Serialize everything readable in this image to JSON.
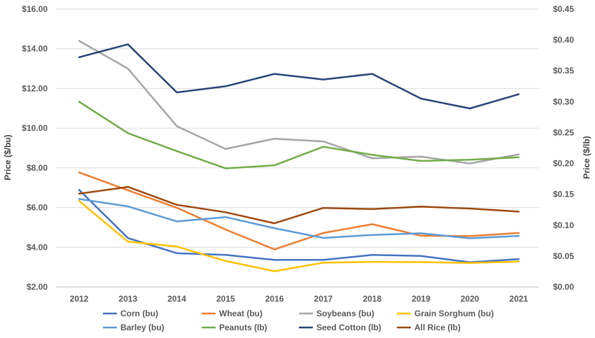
{
  "chart_data": {
    "type": "line",
    "x": [
      2012,
      2013,
      2014,
      2015,
      2016,
      2017,
      2018,
      2019,
      2020,
      2021
    ],
    "categories": [
      "2012",
      "2013",
      "2014",
      "2015",
      "2016",
      "2017",
      "2018",
      "2019",
      "2020",
      "2021"
    ],
    "y_left": {
      "label": "Price ($/bu)",
      "lim": [
        2,
        16
      ],
      "ticks": [
        "$2.00",
        "$4.00",
        "$6.00",
        "$8.00",
        "$10.00",
        "$12.00",
        "$14.00",
        "$16.00"
      ],
      "tick_values": [
        2,
        4,
        6,
        8,
        10,
        12,
        14,
        16
      ]
    },
    "y_right": {
      "label": "Price ($/lb)",
      "lim": [
        0,
        0.45
      ],
      "ticks": [
        "$0.00",
        "$0.05",
        "$0.10",
        "$0.15",
        "$0.20",
        "$0.25",
        "$0.30",
        "$0.35",
        "$0.40",
        "$0.45"
      ],
      "tick_values": [
        0,
        0.05,
        0.1,
        0.15,
        0.2,
        0.25,
        0.3,
        0.35,
        0.4,
        0.45
      ]
    },
    "grid": true,
    "legend_position": "bottom",
    "series": [
      {
        "name": "Corn (bu)",
        "axis": "left",
        "color": "#4472C4",
        "values": [
          6.89,
          4.46,
          3.7,
          3.61,
          3.36,
          3.36,
          3.61,
          3.56,
          3.24,
          3.4
        ]
      },
      {
        "name": "Wheat (bu)",
        "axis": "left",
        "color": "#ED7D31",
        "values": [
          7.77,
          6.87,
          5.99,
          4.89,
          3.89,
          4.72,
          5.16,
          4.58,
          4.56,
          4.72
        ]
      },
      {
        "name": "Soybeans (bu)",
        "axis": "left",
        "color": "#A5A5A5",
        "values": [
          14.4,
          13.0,
          10.1,
          8.95,
          9.47,
          9.33,
          8.48,
          8.57,
          8.22,
          8.68
        ]
      },
      {
        "name": "Grain Sorghum (bu)",
        "axis": "left",
        "color": "#FFC000",
        "values": [
          6.33,
          4.28,
          4.03,
          3.31,
          2.79,
          3.22,
          3.26,
          3.25,
          3.21,
          3.28
        ]
      },
      {
        "name": "Barley (bu)",
        "axis": "left",
        "color": "#5B9BD5",
        "values": [
          6.43,
          6.06,
          5.3,
          5.52,
          4.96,
          4.47,
          4.62,
          4.7,
          4.45,
          4.57
        ]
      },
      {
        "name": "Peanuts (lb)",
        "axis": "right",
        "color": "#70AD47",
        "values": [
          0.3,
          0.249,
          0.22,
          0.192,
          0.197,
          0.227,
          0.214,
          0.204,
          0.206,
          0.21
        ]
      },
      {
        "name": "Seed Cotton (lb)",
        "axis": "right",
        "color": "#264478",
        "values": [
          0.372,
          0.393,
          0.315,
          0.325,
          0.345,
          0.336,
          0.345,
          0.305,
          0.289,
          0.312
        ]
      },
      {
        "name": "All Rice (lb)",
        "axis": "right",
        "color": "#9E480E",
        "values": [
          0.151,
          0.162,
          0.133,
          0.121,
          0.103,
          0.128,
          0.126,
          0.13,
          0.127,
          0.122
        ]
      }
    ]
  }
}
